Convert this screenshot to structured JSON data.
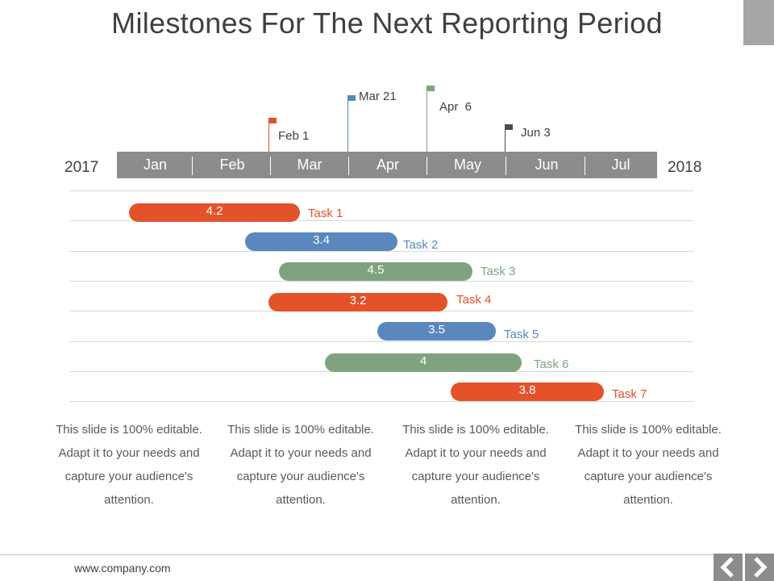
{
  "slide": {
    "title": "Milestones For The Next Reporting Period",
    "year_start": "2017",
    "year_end": "2018"
  },
  "months": [
    "Jan",
    "Feb",
    "Mar",
    "Apr",
    "May",
    "Jun",
    "Jul"
  ],
  "milestones": [
    {
      "label": "Feb 1",
      "color": "#e4522a"
    },
    {
      "label": "Mar 21",
      "color": "#5b87bf"
    },
    {
      "label": "Apr  6",
      "color": "#7fa37e"
    },
    {
      "label": "Jun 3",
      "color": "#4d4d4d"
    }
  ],
  "tasks": [
    {
      "name": "Task 1",
      "value": "4.2",
      "color": "#e4522a"
    },
    {
      "name": "Task 2",
      "value": "3.4",
      "color": "#5b87bf"
    },
    {
      "name": "Task 3",
      "value": "4.5",
      "color": "#7fa37e"
    },
    {
      "name": "Task 4",
      "value": "3.2",
      "color": "#e4522a"
    },
    {
      "name": "Task 5",
      "value": "3.5",
      "color": "#5b87bf"
    },
    {
      "name": "Task 6",
      "value": "4",
      "color": "#7fa37e"
    },
    {
      "name": "Task 7",
      "value": "3.8",
      "color": "#e4522a"
    }
  ],
  "notes": [
    {
      "line1": "This slide is 100% editable.",
      "line2": "Adapt it to your needs and",
      "line3": "capture your audience's",
      "line4": "attention."
    },
    {
      "line1": "This slide is 100% editable.",
      "line2": "Adapt it to your needs and",
      "line3": "capture your audience's",
      "line4": "attention."
    },
    {
      "line1": "This slide is 100% editable.",
      "line2": "Adapt it to your needs and",
      "line3": "capture your audience's",
      "line4": "attention."
    },
    {
      "line1": "This slide is 100% editable.",
      "line2": "Adapt it to your needs and",
      "line3": "capture your audience's",
      "line4": "attention."
    }
  ],
  "footer": {
    "url": "www.company.com",
    "prev_icon": "chevron-left-icon",
    "next_icon": "chevron-right-icon"
  }
}
